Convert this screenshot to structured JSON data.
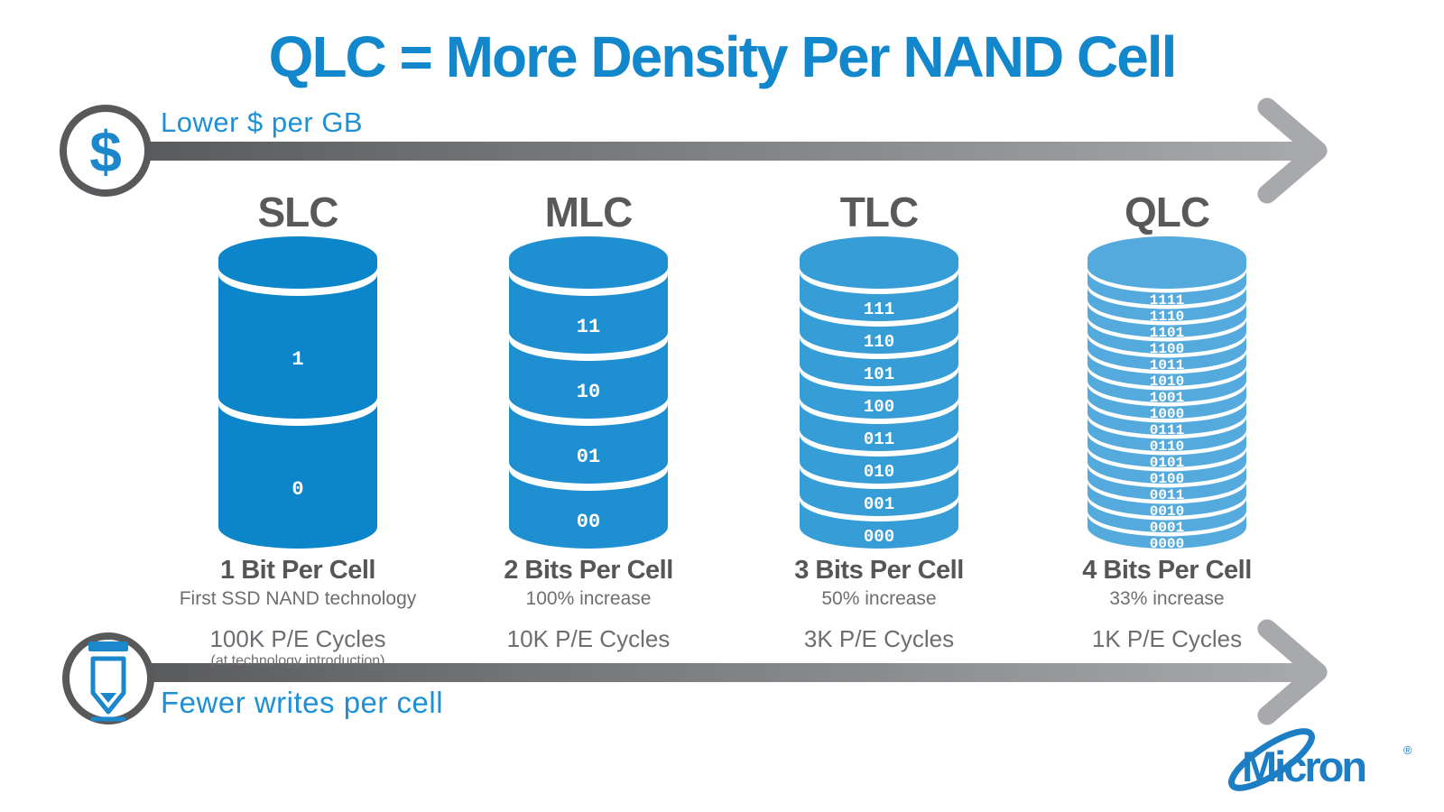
{
  "title": "QLC = More Density Per NAND Cell",
  "top_arrow": {
    "label": "Lower $ per GB",
    "icon": "dollar-icon",
    "glyph": "$"
  },
  "bottom_arrow": {
    "label": "Fewer writes per cell",
    "icon": "pencil-icon"
  },
  "brand": {
    "name": "Micron",
    "mark": "®"
  },
  "colors": {
    "title_blue": "#1287cc",
    "label_blue": "#1e90d6",
    "arrow_dark": "#58595b",
    "arrow_light": "#a7a9ac",
    "text_dark": "#58595b",
    "text_mid": "#6d6e71",
    "brand_blue": "#1d7ec4",
    "segment_label": "#ffffff"
  },
  "columns": [
    {
      "name": "SLC",
      "color": "#0d85ca",
      "bits": "1 Bit Per Cell",
      "sub": "First SSD NAND technology",
      "pe": "100K P/E Cycles",
      "pe_note": "(at technology introduction)",
      "segments": [
        "1",
        "0"
      ]
    },
    {
      "name": "MLC",
      "color": "#1e8fd1",
      "bits": "2 Bits Per Cell",
      "sub": "100% increase",
      "pe": "10K P/E Cycles",
      "pe_note": "",
      "segments": [
        "11",
        "10",
        "01",
        "00"
      ]
    },
    {
      "name": "TLC",
      "color": "#379dd6",
      "bits": "3 Bits Per Cell",
      "sub": "50% increase",
      "pe": "3K P/E Cycles",
      "pe_note": "",
      "segments": [
        "111",
        "110",
        "101",
        "100",
        "011",
        "010",
        "001",
        "000"
      ]
    },
    {
      "name": "QLC",
      "color": "#55aadd",
      "bits": "4 Bits Per Cell",
      "sub": "33% increase",
      "pe": "1K P/E Cycles",
      "pe_note": "",
      "segments": [
        "1111",
        "1110",
        "1101",
        "1100",
        "1011",
        "1010",
        "1001",
        "1000",
        "0111",
        "0110",
        "0101",
        "0100",
        "0011",
        "0010",
        "0001",
        "0000"
      ]
    }
  ]
}
